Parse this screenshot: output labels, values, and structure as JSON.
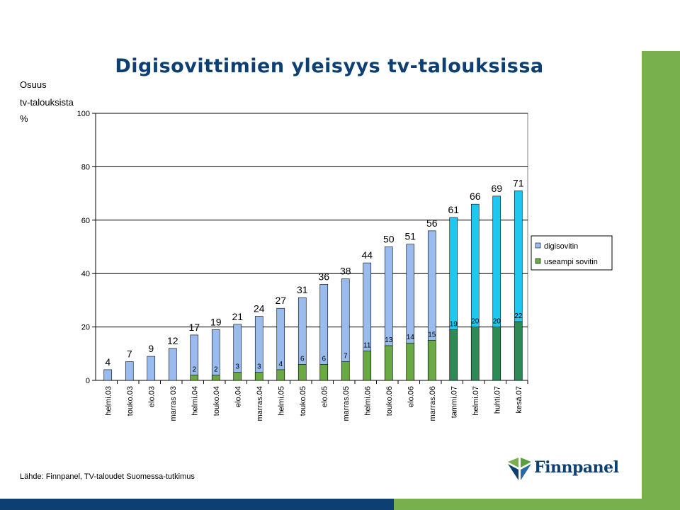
{
  "title": "Digisovittimien yleisyys tv-talouksissa",
  "ylabel_lines": [
    "Osuus",
    "tv-talouksista",
    "%"
  ],
  "source": "Lähde: Finnpanel, TV-taloudet Suomessa-tutkimus",
  "logo": {
    "text": "Finnpanel"
  },
  "colors": {
    "digisovitin": "#99bbee",
    "digisovitin_recent": "#1ec8f0",
    "useampi": "#6aaa44",
    "useampi_recent": "#2c8a55",
    "side_bar": "#78b04e",
    "bottom_bar_blue": "#0d3f73",
    "title": "#0d3f73"
  },
  "chart_data": {
    "type": "bar",
    "categories": [
      "helmi.03",
      "touko.03",
      "elo.03",
      "marras 03",
      "helmi.04",
      "touko.04",
      "elo.04",
      "marras.04",
      "helmi.05",
      "touko.05",
      "elo.05",
      "marras.05",
      "helmi.06",
      "touko.06",
      "elo.06",
      "marras.06",
      "tammi.07",
      "helmi.07",
      "huhti.07",
      "kesä.07"
    ],
    "series": [
      {
        "name": "digisovitin",
        "values": [
          4,
          7,
          9,
          12,
          17,
          19,
          21,
          24,
          27,
          31,
          36,
          38,
          44,
          50,
          51,
          56,
          61,
          66,
          69,
          71
        ]
      },
      {
        "name": "useampi sovitin",
        "values": [
          null,
          null,
          null,
          null,
          2,
          2,
          3,
          3,
          4,
          6,
          6,
          7,
          11,
          13,
          14,
          15,
          19,
          20,
          20,
          22
        ]
      }
    ],
    "overlap": true,
    "ylim": [
      0,
      100
    ],
    "yticks": [
      0,
      20,
      40,
      60,
      80,
      100
    ],
    "grid": true,
    "legend": "right",
    "recent_from_index": 16
  }
}
